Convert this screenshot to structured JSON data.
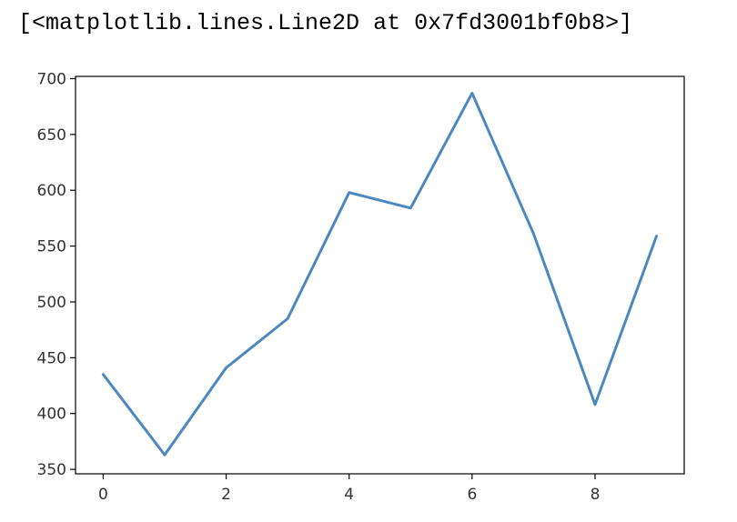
{
  "output": {
    "repr": "[<matplotlib.lines.Line2D at 0x7fd3001bf0b8>]"
  },
  "chart_data": {
    "type": "line",
    "title": "",
    "xlabel": "",
    "ylabel": "",
    "x": [
      0,
      1,
      2,
      3,
      4,
      5,
      6,
      7,
      8,
      9
    ],
    "series": [
      {
        "values": [
          435,
          363,
          441,
          485,
          598,
          584,
          687,
          561,
          408,
          559
        ],
        "color": "#4c88bd"
      }
    ],
    "xlim": [
      -0.45,
      9.45
    ],
    "ylim": [
      346,
      702
    ],
    "xticks": [
      0,
      2,
      4,
      6,
      8
    ],
    "yticks": [
      350,
      400,
      450,
      500,
      550,
      600,
      650,
      700
    ],
    "grid": false,
    "legend": false
  }
}
